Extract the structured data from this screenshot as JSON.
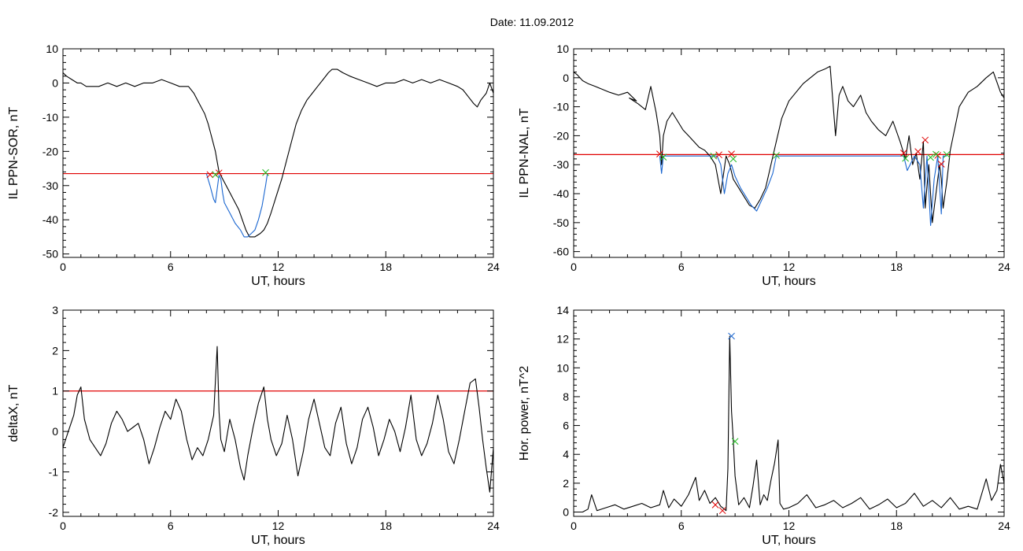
{
  "figure": {
    "title": "Date:  11.09.2012"
  },
  "chart_data": [
    {
      "type": "line",
      "ylabel": "IL PPN-SOR, nT",
      "xlabel": "UT, hours",
      "xlim": [
        0,
        24
      ],
      "ylim": [
        -51,
        10
      ],
      "xticks": [
        0,
        6,
        12,
        18,
        24
      ],
      "yticks": [
        -50,
        -40,
        -30,
        -20,
        -10,
        0,
        10
      ],
      "threshold": -26.5,
      "series": [
        {
          "color": "#000000",
          "x": [
            0,
            0.2,
            0.5,
            0.8,
            1.0,
            1.3,
            1.6,
            2.0,
            2.5,
            3.0,
            3.5,
            4.0,
            4.5,
            5.0,
            5.5,
            6.0,
            6.5,
            7.0,
            7.3,
            7.6,
            7.9,
            8.1,
            8.3,
            8.5,
            8.6,
            8.7,
            8.9,
            9.2,
            9.5,
            9.8,
            10.0,
            10.2,
            10.4,
            10.7,
            11.0,
            11.2,
            11.4,
            11.6,
            11.9,
            12.2,
            12.5,
            12.8,
            13.0,
            13.3,
            13.6,
            13.9,
            14.2,
            14.5,
            14.8,
            15.0,
            15.3,
            15.6,
            16.0,
            16.5,
            17.0,
            17.5,
            18.0,
            18.5,
            19.0,
            19.5,
            20.0,
            20.5,
            21.0,
            21.5,
            22.0,
            22.3,
            22.6,
            22.9,
            23.1,
            23.3,
            23.6,
            23.8,
            24
          ],
          "y": [
            3,
            2,
            1,
            0,
            0,
            -1,
            -1,
            -1,
            0,
            -1,
            0,
            -1,
            0,
            0,
            1,
            0,
            -1,
            -1,
            -3,
            -6,
            -9,
            -12,
            -16,
            -20,
            -23,
            -26,
            -28,
            -31,
            -34,
            -37,
            -40,
            -43,
            -45,
            -45,
            -44,
            -43,
            -41,
            -38,
            -33,
            -28,
            -22,
            -16,
            -12,
            -8,
            -5,
            -3,
            -1,
            1,
            3,
            4,
            4,
            3,
            2,
            1,
            0,
            -1,
            0,
            0,
            1,
            0,
            1,
            0,
            1,
            0,
            -1,
            -2,
            -4,
            -6,
            -7,
            -5,
            -3,
            0,
            -3
          ]
        },
        {
          "color": "#1a66d0",
          "x": [
            8.0,
            8.2,
            8.4,
            8.5,
            8.6,
            8.7,
            8.8,
            8.9,
            9.0,
            9.3,
            9.6,
            9.9,
            10.1,
            10.3,
            10.5,
            10.7,
            10.9,
            11.1,
            11.3,
            11.4
          ],
          "y": [
            -26.5,
            -30,
            -34,
            -35,
            -31,
            -27,
            -28,
            -32,
            -35,
            -38,
            -41,
            -43,
            -45,
            -45,
            -44,
            -43,
            -40,
            -36,
            -30,
            -26.5
          ]
        }
      ],
      "markers": [
        {
          "x": 8.2,
          "y": -26.8,
          "color": "#e00000"
        },
        {
          "x": 8.7,
          "y": -26.3,
          "color": "#e00000"
        },
        {
          "x": 8.5,
          "y": -26.8,
          "color": "#22bb22"
        },
        {
          "x": 11.3,
          "y": -26.2,
          "color": "#22bb22"
        }
      ]
    },
    {
      "type": "line",
      "ylabel": "IL PPN-NAL, nT",
      "xlabel": "UT, hours",
      "xlim": [
        0,
        24
      ],
      "ylim": [
        -62,
        10
      ],
      "xticks": [
        0,
        6,
        12,
        18,
        24
      ],
      "yticks": [
        -60,
        -50,
        -40,
        -30,
        -20,
        -10,
        0,
        10
      ],
      "threshold": -26.5,
      "series": [
        {
          "color": "#000000",
          "x": [
            0,
            0.2,
            0.5,
            0.8,
            1.2,
            1.6,
            2.0,
            2.5,
            3.0,
            3.5,
            3.1,
            3.6,
            4.0,
            4.3,
            4.6,
            4.8,
            4.9,
            5.0,
            5.2,
            5.5,
            5.8,
            6.1,
            6.4,
            6.7,
            7.0,
            7.3,
            7.6,
            7.9,
            8.2,
            8.5,
            8.7,
            8.9,
            9.2,
            9.5,
            9.8,
            10.1,
            10.4,
            10.7,
            11.0,
            11.3,
            11.6,
            12.0,
            12.4,
            12.8,
            13.2,
            13.6,
            14.0,
            14.3,
            14.6,
            14.8,
            15.0,
            15.3,
            15.6,
            16.0,
            16.3,
            16.6,
            17.0,
            17.4,
            17.8,
            18.2,
            18.5,
            18.7,
            18.9,
            19.1,
            19.3,
            19.5,
            19.6,
            19.8,
            20.0,
            20.2,
            20.4,
            20.5,
            20.6,
            20.8,
            21.0,
            21.5,
            22.0,
            22.5,
            23.0,
            23.4,
            23.8,
            24
          ],
          "y": [
            2,
            1,
            -1,
            -2,
            -3,
            -4,
            -5,
            -6,
            -5,
            -8,
            -7,
            -9,
            -11,
            -3,
            -12,
            -20,
            -30,
            -20,
            -15,
            -12,
            -15,
            -18,
            -20,
            -22,
            -24,
            -25,
            -27,
            -30,
            -40,
            -27,
            -30,
            -35,
            -38,
            -41,
            -44,
            -45,
            -42,
            -38,
            -30,
            -22,
            -14,
            -8,
            -5,
            -2,
            0,
            2,
            3,
            4,
            -20,
            -6,
            -3,
            -8,
            -10,
            -6,
            -12,
            -15,
            -18,
            -20,
            -15,
            -22,
            -28,
            -20,
            -30,
            -26,
            -35,
            -22,
            -45,
            -30,
            -50,
            -40,
            -30,
            -35,
            -45,
            -36,
            -25,
            -10,
            -5,
            -3,
            0,
            2,
            -5,
            -7
          ]
        },
        {
          "color": "#1a66d0",
          "x": [
            4.8,
            4.9,
            5.0,
            5.1,
            8.0,
            8.2,
            8.4,
            8.6,
            8.8,
            9.0,
            9.3,
            9.6,
            9.9,
            10.2,
            10.5,
            10.8,
            11.1,
            11.3,
            18.4,
            18.6,
            19.0,
            19.3,
            19.5,
            19.7,
            19.9,
            20.1,
            20.3,
            20.5,
            20.6,
            20.8
          ],
          "y": [
            -27,
            -33,
            -27,
            -27,
            -27,
            -30,
            -40,
            -33,
            -30,
            -34,
            -38,
            -41,
            -44,
            -46,
            -42,
            -38,
            -33,
            -27,
            -27,
            -32,
            -27,
            -30,
            -45,
            -27,
            -51,
            -35,
            -27,
            -47,
            -27,
            -27
          ]
        }
      ],
      "markers": [
        {
          "x": 4.8,
          "y": -26.3,
          "color": "#e00000"
        },
        {
          "x": 5.0,
          "y": -27.4,
          "color": "#22bb22"
        },
        {
          "x": 7.8,
          "y": -27.0,
          "color": "#22bb22"
        },
        {
          "x": 8.1,
          "y": -26.6,
          "color": "#e00000"
        },
        {
          "x": 8.8,
          "y": -26.3,
          "color": "#e00000"
        },
        {
          "x": 8.9,
          "y": -28.0,
          "color": "#22bb22"
        },
        {
          "x": 11.3,
          "y": -26.8,
          "color": "#22bb22"
        },
        {
          "x": 18.4,
          "y": -26.0,
          "color": "#e00000"
        },
        {
          "x": 18.5,
          "y": -27.8,
          "color": "#22bb22"
        },
        {
          "x": 19.2,
          "y": -25.5,
          "color": "#e00000"
        },
        {
          "x": 19.6,
          "y": -21.5,
          "color": "#e00000"
        },
        {
          "x": 19.9,
          "y": -27.5,
          "color": "#22bb22"
        },
        {
          "x": 20.3,
          "y": -26.8,
          "color": "#e00000"
        },
        {
          "x": 20.5,
          "y": -29.8,
          "color": "#e00000"
        },
        {
          "x": 20.2,
          "y": -26.4,
          "color": "#22bb22"
        },
        {
          "x": 20.8,
          "y": -26.5,
          "color": "#22bb22"
        }
      ]
    },
    {
      "type": "line",
      "ylabel": "deltaX, nT",
      "xlabel": "UT, hours",
      "xlim": [
        0,
        24
      ],
      "ylim": [
        -2.1,
        3
      ],
      "xticks": [
        0,
        6,
        12,
        18,
        24
      ],
      "yticks": [
        -2,
        -1,
        0,
        1,
        2,
        3
      ],
      "threshold": 1.0,
      "series": [
        {
          "color": "#000000",
          "x": [
            0,
            0.3,
            0.6,
            0.8,
            1.0,
            1.2,
            1.5,
            1.8,
            2.1,
            2.4,
            2.7,
            3.0,
            3.3,
            3.6,
            3.9,
            4.2,
            4.5,
            4.8,
            5.1,
            5.4,
            5.7,
            6.0,
            6.3,
            6.6,
            6.9,
            7.2,
            7.5,
            7.8,
            8.1,
            8.4,
            8.6,
            8.7,
            8.8,
            9.0,
            9.3,
            9.6,
            9.9,
            10.1,
            10.3,
            10.6,
            10.9,
            11.2,
            11.4,
            11.6,
            11.9,
            12.2,
            12.5,
            12.8,
            13.1,
            13.4,
            13.7,
            14.0,
            14.3,
            14.6,
            14.9,
            15.2,
            15.5,
            15.8,
            16.1,
            16.4,
            16.7,
            17.0,
            17.3,
            17.6,
            17.9,
            18.2,
            18.5,
            18.8,
            19.1,
            19.4,
            19.7,
            20.0,
            20.3,
            20.6,
            20.9,
            21.2,
            21.5,
            21.8,
            22.1,
            22.4,
            22.7,
            23.0,
            23.2,
            23.4,
            23.6,
            23.8,
            24
          ],
          "y": [
            -0.4,
            0,
            0.4,
            0.9,
            1.1,
            0.3,
            -0.2,
            -0.4,
            -0.6,
            -0.3,
            0.2,
            0.5,
            0.3,
            0,
            0.1,
            0.2,
            -0.2,
            -0.8,
            -0.4,
            0.1,
            0.5,
            0.3,
            0.8,
            0.5,
            -0.2,
            -0.7,
            -0.4,
            -0.6,
            -0.2,
            0.4,
            2.1,
            0.5,
            -0.2,
            -0.5,
            0.3,
            -0.2,
            -0.9,
            -1.2,
            -0.6,
            0.1,
            0.7,
            1.1,
            0.3,
            -0.2,
            -0.6,
            -0.3,
            0.4,
            -0.2,
            -1.1,
            -0.5,
            0.3,
            0.8,
            0.2,
            -0.4,
            -0.6,
            0.2,
            0.6,
            -0.3,
            -0.8,
            -0.4,
            0.3,
            0.6,
            0.1,
            -0.6,
            -0.2,
            0.3,
            0,
            -0.5,
            0.1,
            0.9,
            -0.2,
            -0.6,
            -0.3,
            0.2,
            0.9,
            0.3,
            -0.5,
            -0.8,
            -0.2,
            0.5,
            1.2,
            1.3,
            0.6,
            -0.2,
            -0.9,
            -1.5,
            -0.4
          ]
        }
      ],
      "markers": []
    },
    {
      "type": "line",
      "ylabel": "Hor. power, nT^2",
      "xlabel": "UT, hours",
      "xlim": [
        0,
        24
      ],
      "ylim": [
        -0.3,
        14
      ],
      "xticks": [
        0,
        6,
        12,
        18,
        24
      ],
      "yticks": [
        0,
        2,
        4,
        6,
        8,
        10,
        12,
        14
      ],
      "threshold": null,
      "series": [
        {
          "color": "#000000",
          "x": [
            0,
            0.5,
            0.8,
            1.0,
            1.3,
            1.8,
            2.3,
            2.8,
            3.3,
            3.8,
            4.3,
            4.8,
            5.0,
            5.3,
            5.6,
            6.0,
            6.4,
            6.8,
            7.0,
            7.3,
            7.6,
            7.9,
            8.2,
            8.4,
            8.5,
            8.6,
            8.7,
            8.8,
            8.9,
            9.0,
            9.2,
            9.5,
            9.8,
            10.0,
            10.2,
            10.4,
            10.6,
            10.8,
            11.0,
            11.2,
            11.4,
            11.5,
            11.7,
            12.0,
            12.5,
            13.0,
            13.5,
            14.0,
            14.5,
            15.0,
            15.5,
            16.0,
            16.5,
            17.0,
            17.5,
            18.0,
            18.5,
            19.0,
            19.5,
            20.0,
            20.5,
            21.0,
            21.5,
            22.0,
            22.5,
            23.0,
            23.3,
            23.6,
            23.8,
            24
          ],
          "y": [
            0,
            0,
            0.2,
            1.2,
            0.1,
            0.3,
            0.5,
            0.2,
            0.4,
            0.6,
            0.3,
            0.5,
            1.5,
            0.3,
            0.9,
            0.4,
            1.2,
            2.4,
            0.8,
            1.5,
            0.6,
            1.0,
            0.4,
            0.2,
            0.1,
            3.0,
            12.2,
            7.0,
            5.0,
            2.5,
            0.5,
            1.0,
            0.3,
            1.8,
            3.6,
            0.5,
            1.2,
            0.8,
            2.2,
            3.4,
            5.0,
            0.6,
            0.2,
            0.3,
            0.6,
            1.2,
            0.3,
            0.5,
            0.8,
            0.3,
            0.6,
            1.0,
            0.2,
            0.5,
            0.9,
            0.3,
            0.6,
            1.3,
            0.4,
            0.8,
            0.3,
            1.0,
            0.2,
            0.4,
            0.2,
            2.3,
            0.8,
            1.5,
            3.3,
            2.0
          ]
        }
      ],
      "markers": [
        {
          "x": 7.9,
          "y": 0.5,
          "color": "#e00000"
        },
        {
          "x": 8.3,
          "y": 0.1,
          "color": "#e00000"
        },
        {
          "x": 8.8,
          "y": 12.2,
          "color": "#1a66d0"
        },
        {
          "x": 9.0,
          "y": 4.9,
          "color": "#22bb22"
        }
      ]
    }
  ]
}
